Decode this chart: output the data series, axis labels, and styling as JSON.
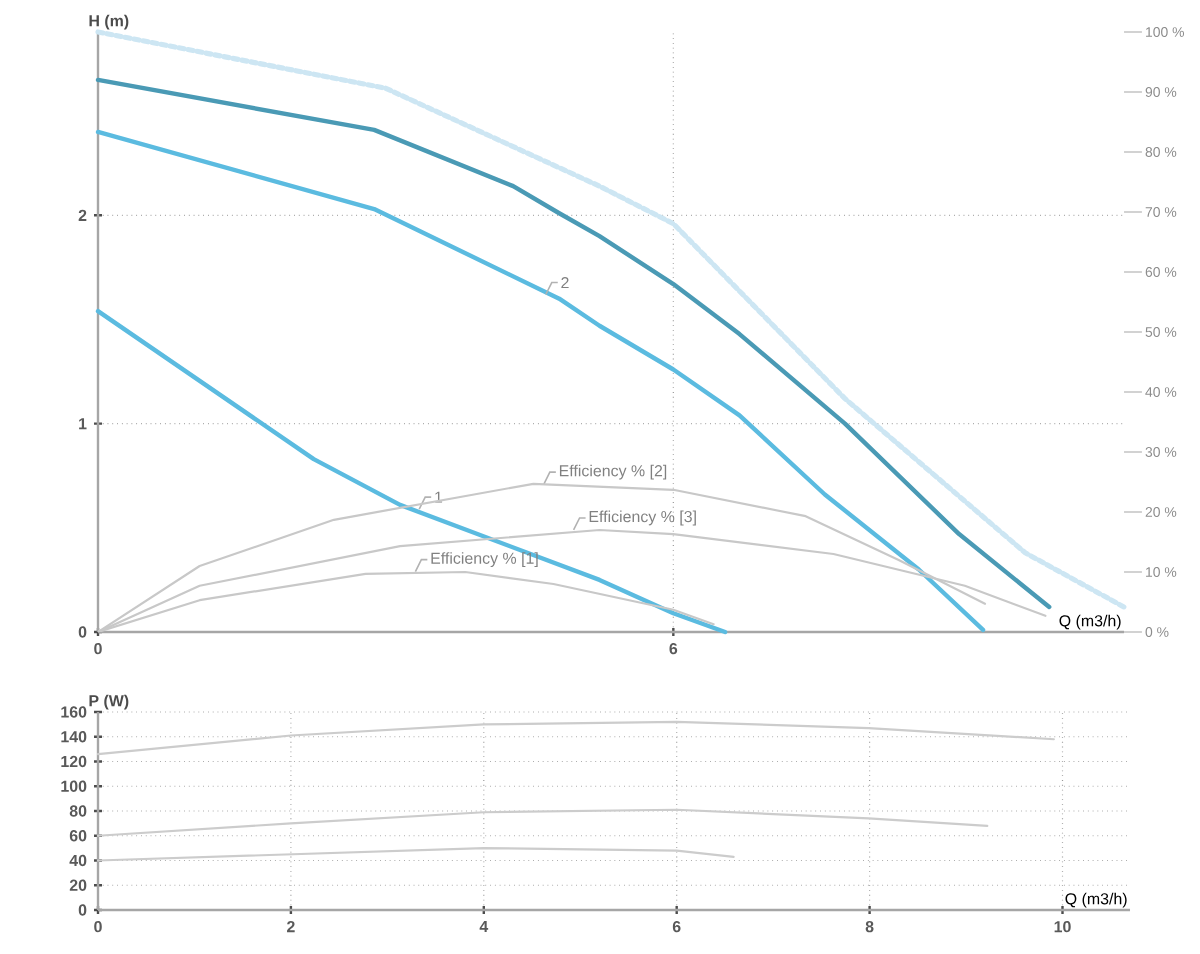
{
  "chart_data": [
    {
      "type": "line",
      "ylabel": "H (m)",
      "xlabel": "Q (m3/h)",
      "xlim": [
        0,
        10.7
      ],
      "ylim": [
        0,
        2.88
      ],
      "xticks": [
        0,
        6
      ],
      "yticks": [
        0,
        1,
        2
      ],
      "y2lim": [
        0,
        100
      ],
      "y2ticks": [
        {
          "value": 0,
          "label": "0 %"
        },
        {
          "value": 10,
          "label": "10 %"
        },
        {
          "value": 20,
          "label": "20 %"
        },
        {
          "value": 30,
          "label": "30 %"
        },
        {
          "value": 40,
          "label": "40 %"
        },
        {
          "value": 50,
          "label": "50 %"
        },
        {
          "value": 60,
          "label": "60 %"
        },
        {
          "value": 70,
          "label": "70 %"
        },
        {
          "value": 80,
          "label": "80 %"
        },
        {
          "value": 90,
          "label": "90 %"
        },
        {
          "value": 100,
          "label": "100 %"
        }
      ],
      "grid": true,
      "series": [
        {
          "color": "#cde6f3",
          "line_style": "dotted",
          "x": [
            0,
            3.0,
            5.23,
            6.0,
            7.79,
            9.67,
            10.7
          ],
          "values": [
            2.88,
            2.61,
            2.14,
            1.96,
            1.12,
            0.38,
            0.12
          ]
        },
        {
          "color": "#4a9ab5",
          "x": [
            0,
            2.88,
            4.33,
            4.81,
            5.23,
            6.0,
            6.69,
            7.79,
            8.98,
            9.92
          ],
          "values": [
            2.65,
            2.41,
            2.14,
            2.01,
            1.9,
            1.67,
            1.43,
            1.0,
            0.47,
            0.12
          ]
        },
        {
          "color": "#5bbbe0",
          "x": [
            0,
            2.88,
            4.81,
            5.23,
            6.0,
            6.69,
            7.58,
            8.56,
            9.23
          ],
          "values": [
            2.4,
            2.03,
            1.6,
            1.47,
            1.26,
            1.04,
            0.66,
            0.3,
            0.01
          ]
        },
        {
          "color": "#5bbbe0",
          "x": [
            0,
            2.25,
            3.15,
            5.23,
            6.0,
            6.54
          ],
          "values": [
            1.54,
            0.83,
            0.61,
            0.25,
            0.09,
            0.0
          ]
        },
        {
          "color": "#c8c8c8",
          "axis": "y2",
          "x": [
            0,
            1.06,
            2.46,
            4.54,
            6.0,
            7.38,
            8.35,
            9.25
          ],
          "values": [
            0,
            11,
            18.7,
            24.7,
            23.7,
            19.3,
            12,
            4.7
          ]
        },
        {
          "color": "#c8c8c8",
          "axis": "y2",
          "x": [
            0,
            1.06,
            3.15,
            5.23,
            6.0,
            7.67,
            9.04,
            9.88
          ],
          "values": [
            0,
            7.7,
            14.3,
            17,
            16.3,
            13,
            7.7,
            2.7
          ]
        },
        {
          "color": "#c8c8c8",
          "axis": "y2",
          "x": [
            0,
            1.06,
            2.79,
            3.83,
            4.75,
            6.0,
            6.42
          ],
          "values": [
            0,
            5.3,
            9.7,
            10,
            8,
            3.7,
            1.3
          ]
        }
      ],
      "annotations": [
        {
          "text": "2",
          "x": 4.67,
          "y": 1.62
        },
        {
          "text": "1",
          "x": 3.35,
          "y": 0.59
        },
        {
          "text": "Efficiency % [2]",
          "x": 4.65,
          "y": 0.71
        },
        {
          "text": "Efficiency % [3]",
          "x": 4.96,
          "y": 0.49
        },
        {
          "text": "Efficiency % [1]",
          "x": 3.31,
          "y": 0.29
        }
      ]
    },
    {
      "type": "line",
      "ylabel": "P (W)",
      "xlabel": "Q (m3/h)",
      "xlim": [
        0,
        10.7
      ],
      "ylim": [
        0,
        160
      ],
      "xticks": [
        0,
        2,
        4,
        6,
        8,
        10
      ],
      "yticks": [
        0,
        20,
        40,
        60,
        80,
        100,
        120,
        140,
        160
      ],
      "grid": true,
      "series": [
        {
          "color": "#cccccc",
          "x": [
            0,
            2.0,
            4.0,
            6.0,
            7.99,
            9.91
          ],
          "values": [
            126,
            141,
            150,
            152,
            147,
            138
          ]
        },
        {
          "color": "#cccccc",
          "x": [
            0,
            2.0,
            4.0,
            6.0,
            7.99,
            9.22
          ],
          "values": [
            60,
            70,
            79,
            81,
            74,
            68
          ]
        },
        {
          "color": "#cccccc",
          "x": [
            0,
            2.0,
            4.0,
            6.0,
            6.59
          ],
          "values": [
            40,
            45,
            50,
            48,
            43
          ]
        }
      ]
    }
  ]
}
